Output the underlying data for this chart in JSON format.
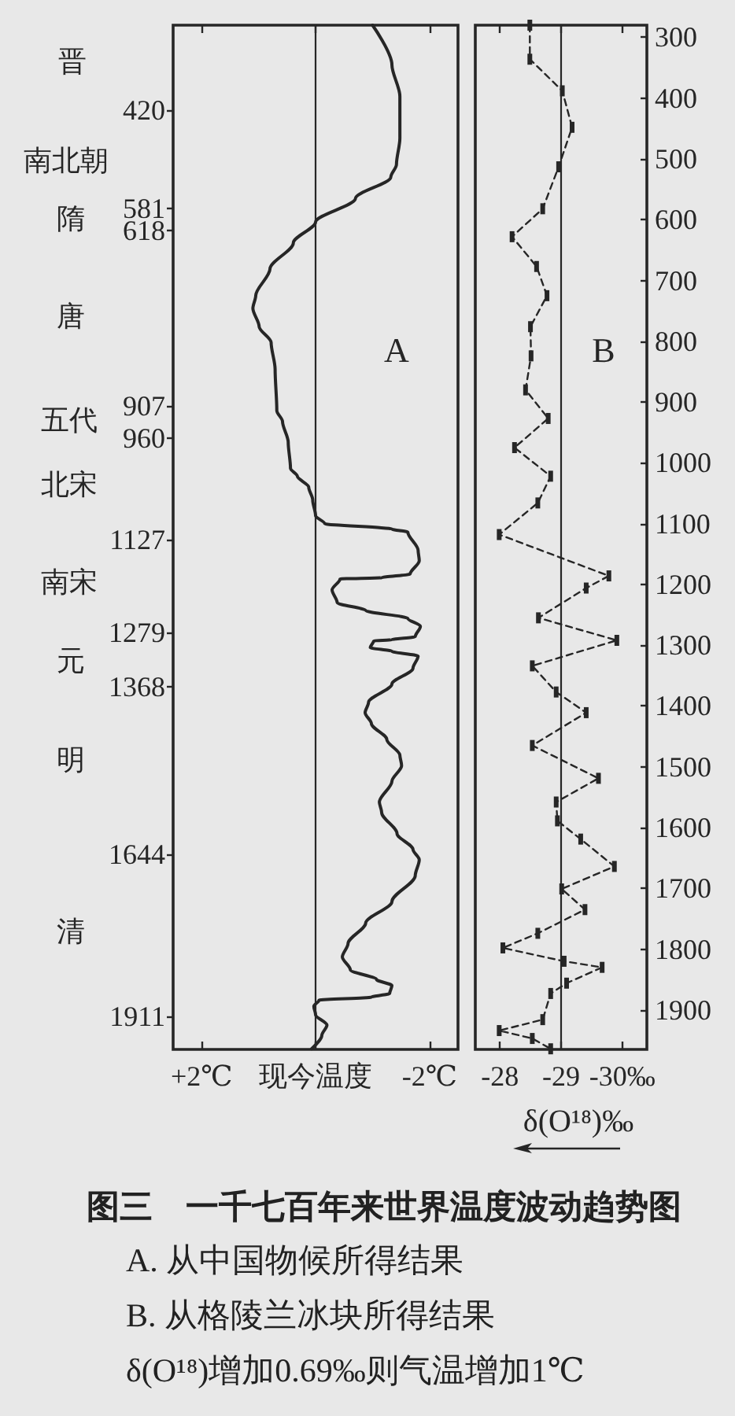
{
  "chart_data": [
    {
      "type": "line",
      "title": "图三　一千七百年来世界温度波动趋势图",
      "annotations": [
        "A",
        "A. 从中国物候所得结果",
        "晋",
        "南北朝",
        "隋",
        "唐",
        "五代",
        "北宋",
        "南宋",
        "元",
        "明",
        "清"
      ],
      "xlim": [
        2.5,
        -2.5
      ],
      "xticks": [
        {
          "value": 2,
          "label": "+2℃"
        },
        {
          "value": 0,
          "label": "现今温度"
        },
        {
          "value": -2,
          "label": "-2℃"
        }
      ],
      "ylim": [
        1965,
        280
      ],
      "yticks": [
        420,
        581,
        618,
        907,
        960,
        1127,
        1279,
        1368,
        1644,
        1911
      ],
      "ref_lines": [
        {
          "axis": "x",
          "value": 0
        }
      ],
      "series": [
        {
          "color": "#262626",
          "x": [
            -1.0,
            -1.34,
            -1.48,
            -1.48,
            -1.42,
            -1.32,
            -0.7,
            0,
            0.39,
            0.8,
            1.05,
            1.1,
            0.99,
            0.78,
            0.71,
            0.68,
            0.58,
            0.48,
            0.44,
            0.32,
            0.12,
            0.05,
            0,
            -0.16,
            -1.34,
            -1.62,
            -1.8,
            -1.82,
            -1.66,
            -1.16,
            -0.43,
            -0.29,
            -0.38,
            -0.88,
            -1.62,
            -1.84,
            -1.75,
            -1.34,
            -1.02,
            -0.96,
            -1.34,
            -1.8,
            -1.71,
            -1.34,
            -0.93,
            -0.87,
            -0.98,
            -1.25,
            -1.48,
            -1.51,
            -1.34,
            -1.12,
            -1.16,
            -1.43,
            -1.71,
            -1.82,
            -1.75,
            -1.34,
            -0.88,
            -0.57,
            -0.47,
            -0.61,
            -1.07,
            -1.34,
            -1.3,
            -0.98,
            -0.06,
            0.03,
            0,
            -0.2,
            -0.11,
            0.07
          ],
          "values": [
            280,
            345,
            397,
            466,
            509,
            530,
            565,
            604,
            638,
            681,
            725,
            746,
            776,
            802,
            846,
            914,
            932,
            966,
            1009,
            1022,
            1040,
            1061,
            1087,
            1100,
            1109,
            1114,
            1144,
            1161,
            1183,
            1189,
            1191,
            1209,
            1230,
            1243,
            1256,
            1269,
            1286,
            1291,
            1293,
            1304,
            1310,
            1318,
            1338,
            1364,
            1394,
            1411,
            1429,
            1455,
            1481,
            1498,
            1524,
            1558,
            1575,
            1610,
            1636,
            1653,
            1679,
            1722,
            1757,
            1791,
            1813,
            1834,
            1850,
            1860,
            1873,
            1879,
            1884,
            1894,
            1908,
            1925,
            1942,
            1964
          ]
        }
      ],
      "grid": false,
      "marker": "none",
      "line_style": "solid"
    },
    {
      "type": "line",
      "annotations": [
        "B",
        "B. 从格陵兰冰块所得结果",
        "δ(O¹⁸)增加0.69‰则气温增加1℃"
      ],
      "xlabel": "δ(O¹⁸)‰",
      "xlim": [
        -27.6,
        -30.4
      ],
      "xticks": [
        -28,
        -29,
        {
          "value": -30,
          "label": "-30‰"
        }
      ],
      "ylim": [
        1965,
        280
      ],
      "yticks": [
        300,
        400,
        500,
        600,
        700,
        800,
        900,
        1000,
        1100,
        1200,
        1300,
        1400,
        1500,
        1600,
        1700,
        1800,
        1900
      ],
      "ref_lines": [
        {
          "axis": "x",
          "value": -29
        }
      ],
      "series": [
        {
          "color": "#262626",
          "x": [
            -28.49,
            -28.49,
            -29.02,
            -29.18,
            -28.96,
            -28.7,
            -28.2,
            -28.6,
            -28.77,
            -28.5,
            -28.51,
            -28.42,
            -28.79,
            -28.24,
            -28.83,
            -28.62,
            -27.99,
            -29.78,
            -29.41,
            -28.63,
            -29.91,
            -28.53,
            -28.92,
            -29.41,
            -28.53,
            -29.61,
            -28.92,
            -28.94,
            -29.32,
            -29.87,
            -29.01,
            -29.39,
            -28.62,
            -28.05,
            -29.05,
            -29.67,
            -29.09,
            -28.83,
            -28.7,
            -27.99,
            -28.53,
            -28.83
          ],
          "values": [
            280,
            336,
            388,
            448,
            513,
            582,
            628,
            677,
            725,
            776,
            824,
            880,
            927,
            975,
            1022,
            1066,
            1118,
            1186,
            1206,
            1255,
            1292,
            1334,
            1377,
            1411,
            1465,
            1519,
            1558,
            1589,
            1619,
            1664,
            1701,
            1735,
            1774,
            1798,
            1820,
            1830,
            1856,
            1873,
            1916,
            1934,
            1947,
            1964
          ]
        }
      ],
      "grid": false,
      "marker": "square",
      "line_style": "dashed"
    }
  ]
}
